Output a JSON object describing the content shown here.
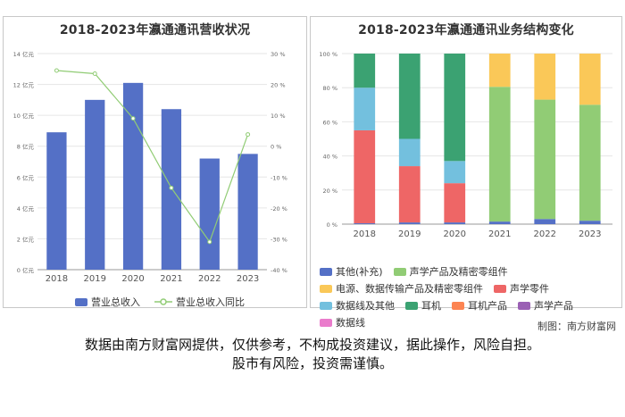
{
  "charts": {
    "left": {
      "title": "2018-2023年瀛通通讯营收状况",
      "legend": {
        "bar": "营业总收入",
        "line": "营业总收入同比"
      },
      "colors": {
        "bar": "#5470c6",
        "line": "#91cc75"
      }
    },
    "right": {
      "title": "2018-2023年瀛通通讯业务结构变化",
      "legend": [
        "其他(补充)",
        "声学产品及精密零组件",
        "电源、数据传输产品及精密零组件",
        "声学零件",
        "数据线及其他",
        "耳机",
        "耳机产品",
        "声学产品",
        "数据线"
      ]
    }
  },
  "source": "制图：南方财富网",
  "disclaimer": {
    "line1": "数据由南方财富网提供，仅供参考，不构成投资建议，据此操作，风险自担。",
    "line2": "股市有风险，投资需谨慎。"
  },
  "chart_data": [
    {
      "type": "bar",
      "title": "2018-2023年瀛通通讯营收状况",
      "categories": [
        "2018",
        "2019",
        "2020",
        "2021",
        "2022",
        "2023"
      ],
      "y_left": {
        "ticks": [
          "0 亿元",
          "2 亿元",
          "4 亿元",
          "6 亿元",
          "8 亿元",
          "10 亿元",
          "12 亿元",
          "14 亿元"
        ],
        "ylim": [
          0,
          14
        ]
      },
      "y_right": {
        "ticks": [
          "-40 %",
          "-30 %",
          "-20 %",
          "-10 %",
          "0 %",
          "10 %",
          "20 %",
          "30 %"
        ],
        "ylim": [
          -40,
          30
        ]
      },
      "series": [
        {
          "name": "营业总收入",
          "type": "bar",
          "axis": "left",
          "values": [
            8.9,
            11.0,
            12.1,
            10.4,
            7.2,
            7.5
          ]
        },
        {
          "name": "营业总收入同比",
          "type": "line",
          "axis": "right",
          "values": [
            24.5,
            23.5,
            9.0,
            -13.5,
            -31.0,
            3.8
          ]
        }
      ]
    },
    {
      "type": "bar",
      "stacked": true,
      "title": "2018-2023年瀛通通讯业务结构变化",
      "categories": [
        "2018",
        "2019",
        "2020",
        "2021",
        "2022",
        "2023"
      ],
      "y_ticks": [
        "0 %",
        "20 %",
        "40 %",
        "60 %",
        "80 %",
        "100 %"
      ],
      "ylim": [
        0,
        100
      ],
      "series": [
        {
          "name": "其他(补充)",
          "color": "#5470c6",
          "values": [
            0.5,
            1,
            1,
            1.5,
            3,
            2
          ]
        },
        {
          "name": "声学产品及精密零组件",
          "color": "#91cc75",
          "values": [
            0,
            0,
            0,
            79,
            70,
            68
          ]
        },
        {
          "name": "电源、数据传输产品及精密零组件",
          "color": "#fac858",
          "values": [
            0,
            0,
            0,
            19.5,
            27,
            30
          ]
        },
        {
          "name": "声学零件",
          "color": "#ee6666",
          "values": [
            54.5,
            33,
            23,
            0,
            0,
            0
          ]
        },
        {
          "name": "数据线及其他",
          "color": "#73c0de",
          "values": [
            25,
            16,
            13,
            0,
            0,
            0
          ]
        },
        {
          "name": "耳机",
          "color": "#3ba272",
          "values": [
            20,
            50,
            63,
            0,
            0,
            0
          ]
        },
        {
          "name": "耳机产品",
          "color": "#fc8452",
          "values": [
            0,
            0,
            0,
            0,
            0,
            0
          ]
        },
        {
          "name": "声学产品",
          "color": "#9a60b4",
          "values": [
            0,
            0,
            0,
            0,
            0,
            0
          ]
        },
        {
          "name": "数据线",
          "color": "#ea7ccc",
          "values": [
            0,
            0,
            0,
            0,
            0,
            0
          ]
        }
      ]
    }
  ]
}
